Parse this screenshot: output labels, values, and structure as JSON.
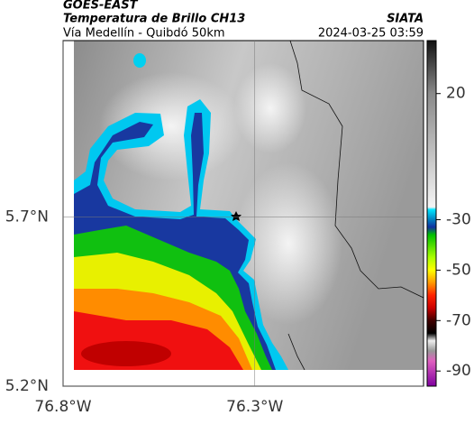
{
  "map": {
    "header": {
      "source": "GOES-EAST",
      "product": "Temperatura de Brillo CH13",
      "region": "Vía Medellín - Quibdó 50km",
      "agency": "SIATA",
      "timestamp": "2024-03-25 03:59"
    },
    "xlim": [
      -76.8,
      -75.86
    ],
    "ylim": [
      5.2,
      6.22
    ],
    "xticks": [
      {
        "value": -76.8,
        "label": "76.8°W"
      },
      {
        "value": -76.3,
        "label": "76.3°W"
      }
    ],
    "yticks": [
      {
        "value": 5.2,
        "label": "5.2°N"
      },
      {
        "value": 5.7,
        "label": "5.7°N"
      }
    ],
    "colorbar": {
      "lim": [
        -96,
        41
      ],
      "ticks": [
        20,
        -30,
        -50,
        -70,
        -90
      ],
      "stops": [
        {
          "value": 41,
          "color": "#111111"
        },
        {
          "value": 20,
          "color": "#8a8a8a"
        },
        {
          "value": -25,
          "color": "#f4f4f4"
        },
        {
          "value": -26,
          "color": "#00e5ff"
        },
        {
          "value": -30,
          "color": "#0080c0"
        },
        {
          "value": -33,
          "color": "#1030a0"
        },
        {
          "value": -36,
          "color": "#00c000"
        },
        {
          "value": -45,
          "color": "#aaff00"
        },
        {
          "value": -50,
          "color": "#ffff00"
        },
        {
          "value": -55,
          "color": "#ff9900"
        },
        {
          "value": -60,
          "color": "#ff2200"
        },
        {
          "value": -65,
          "color": "#cc0000"
        },
        {
          "value": -70,
          "color": "#400000"
        },
        {
          "value": -75,
          "color": "#000000"
        },
        {
          "value": -78,
          "color": "#eeeeee"
        },
        {
          "value": -82,
          "color": "#999999"
        },
        {
          "value": -86,
          "color": "#e060c0"
        },
        {
          "value": -96,
          "color": "#8000a0"
        }
      ]
    }
  }
}
